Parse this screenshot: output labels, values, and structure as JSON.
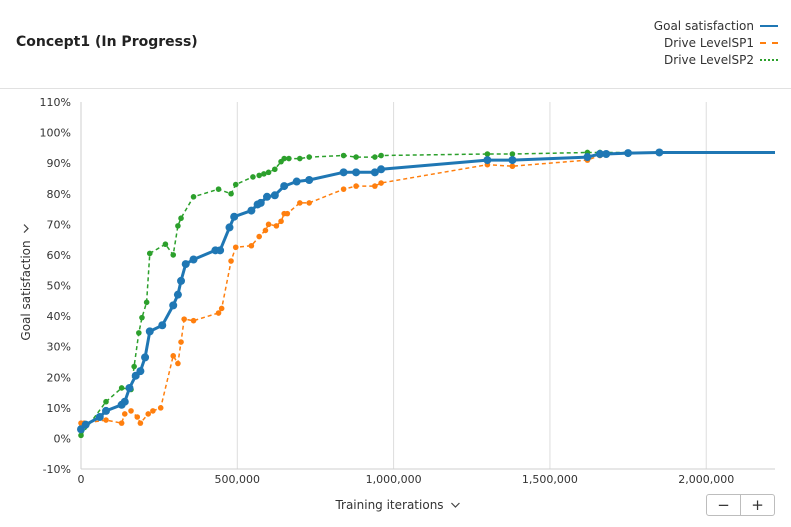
{
  "title": "Concept1 (In Progress)",
  "colors": {
    "goal": "#1f77b4",
    "sp1": "#ff7f0e",
    "sp2": "#2ca02c",
    "grid": "#dddddd"
  },
  "zoom": {
    "minus": "−",
    "plus": "+"
  },
  "chart_data": {
    "type": "line",
    "xlabel": "Training iterations",
    "ylabel": "Goal satisfaction",
    "xlim": [
      0,
      2220000
    ],
    "ylim": [
      -10,
      110
    ],
    "x_ticks": [
      0,
      500000,
      1000000,
      1500000,
      2000000
    ],
    "x_tick_labels": [
      "0",
      "500,000",
      "1,000,000",
      "1,500,000",
      "2,000,000"
    ],
    "y_ticks": [
      -10,
      0,
      10,
      20,
      30,
      40,
      50,
      60,
      70,
      80,
      90,
      100,
      110
    ],
    "y_tick_labels": [
      "-10%",
      "0%",
      "10%",
      "20%",
      "30%",
      "40%",
      "50%",
      "60%",
      "70%",
      "80%",
      "90%",
      "100%",
      "110%"
    ],
    "grid": "vertical",
    "legend_position": "top-right",
    "series": [
      {
        "name": "Goal satisfaction",
        "line_style": "solid",
        "x": [
          0,
          15000,
          60000,
          80000,
          130000,
          140000,
          155000,
          175000,
          190000,
          205000,
          220000,
          260000,
          295000,
          310000,
          320000,
          335000,
          360000,
          430000,
          445000,
          475000,
          490000,
          545000,
          565000,
          575000,
          595000,
          620000,
          650000,
          690000,
          730000,
          840000,
          880000,
          940000,
          960000,
          1300000,
          1380000,
          1620000,
          1660000,
          1680000,
          1750000,
          1850000,
          2220000
        ],
        "y": [
          3,
          4.5,
          7,
          9,
          11,
          12,
          16.5,
          20.5,
          22,
          26.5,
          35,
          37,
          43.5,
          47,
          51.5,
          57,
          58.5,
          61.5,
          61.5,
          69,
          72.5,
          74.5,
          76.5,
          77,
          79,
          79.5,
          82.5,
          84,
          84.5,
          87,
          87,
          87,
          88,
          91,
          91,
          92,
          93,
          93,
          93.3,
          93.5,
          93.5
        ],
        "markers": [
          0,
          15000,
          60000,
          80000,
          130000,
          140000,
          155000,
          175000,
          190000,
          205000,
          220000,
          260000,
          295000,
          310000,
          320000,
          335000,
          360000,
          430000,
          445000,
          475000,
          490000,
          545000,
          565000,
          575000,
          595000,
          620000,
          650000,
          690000,
          730000,
          840000,
          880000,
          940000,
          960000,
          1300000,
          1380000,
          1620000,
          1660000,
          1680000,
          1750000,
          1850000
        ]
      },
      {
        "name": "Drive LevelSP1",
        "line_style": "dashed",
        "x": [
          0,
          10000,
          80000,
          130000,
          140000,
          160000,
          180000,
          190000,
          215000,
          230000,
          255000,
          295000,
          310000,
          320000,
          330000,
          360000,
          440000,
          450000,
          480000,
          495000,
          545000,
          570000,
          590000,
          600000,
          625000,
          640000,
          650000,
          660000,
          700000,
          730000,
          840000,
          880000,
          940000,
          960000,
          1300000,
          1380000,
          1620000,
          1660000,
          1750000,
          2220000
        ],
        "y": [
          5,
          5,
          6,
          5,
          8,
          9,
          7,
          5,
          8,
          9,
          10,
          27,
          24.5,
          31.5,
          39,
          38.5,
          41,
          42.5,
          58,
          62.5,
          63,
          66,
          68,
          70,
          69.5,
          71,
          73.5,
          73.5,
          77,
          77,
          81.5,
          82.5,
          82.5,
          83.5,
          89.5,
          89,
          91,
          92.5,
          93.5,
          93.5
        ],
        "markers": [
          0,
          10000,
          80000,
          130000,
          140000,
          160000,
          180000,
          190000,
          215000,
          230000,
          255000,
          295000,
          310000,
          320000,
          330000,
          360000,
          440000,
          450000,
          480000,
          495000,
          545000,
          570000,
          590000,
          600000,
          625000,
          640000,
          650000,
          660000,
          700000,
          730000,
          840000,
          880000,
          940000,
          960000,
          1300000,
          1380000,
          1620000,
          1660000
        ]
      },
      {
        "name": "Drive LevelSP2",
        "line_style": "dotted",
        "x": [
          0,
          80000,
          130000,
          160000,
          170000,
          185000,
          195000,
          210000,
          220000,
          270000,
          295000,
          310000,
          320000,
          360000,
          440000,
          480000,
          495000,
          550000,
          570000,
          585000,
          600000,
          620000,
          640000,
          650000,
          665000,
          700000,
          730000,
          840000,
          880000,
          940000,
          960000,
          1300000,
          1380000,
          1620000,
          1660000,
          1750000,
          2220000
        ],
        "y": [
          1,
          12,
          16.5,
          16,
          23.5,
          34.5,
          39.5,
          44.5,
          60.5,
          63.5,
          60,
          69.5,
          72,
          79,
          81.5,
          80,
          83,
          85.5,
          86,
          86.5,
          87,
          88,
          90.5,
          91.5,
          91.5,
          91.5,
          92,
          92.5,
          92,
          92,
          92.5,
          93,
          93,
          93.5,
          93.5,
          93.5,
          93.5
        ],
        "markers": [
          0,
          80000,
          130000,
          160000,
          170000,
          185000,
          195000,
          210000,
          220000,
          270000,
          295000,
          310000,
          320000,
          360000,
          440000,
          480000,
          495000,
          550000,
          570000,
          585000,
          600000,
          620000,
          640000,
          650000,
          665000,
          700000,
          730000,
          840000,
          880000,
          940000,
          960000,
          1300000,
          1380000,
          1620000,
          1660000
        ]
      }
    ]
  }
}
